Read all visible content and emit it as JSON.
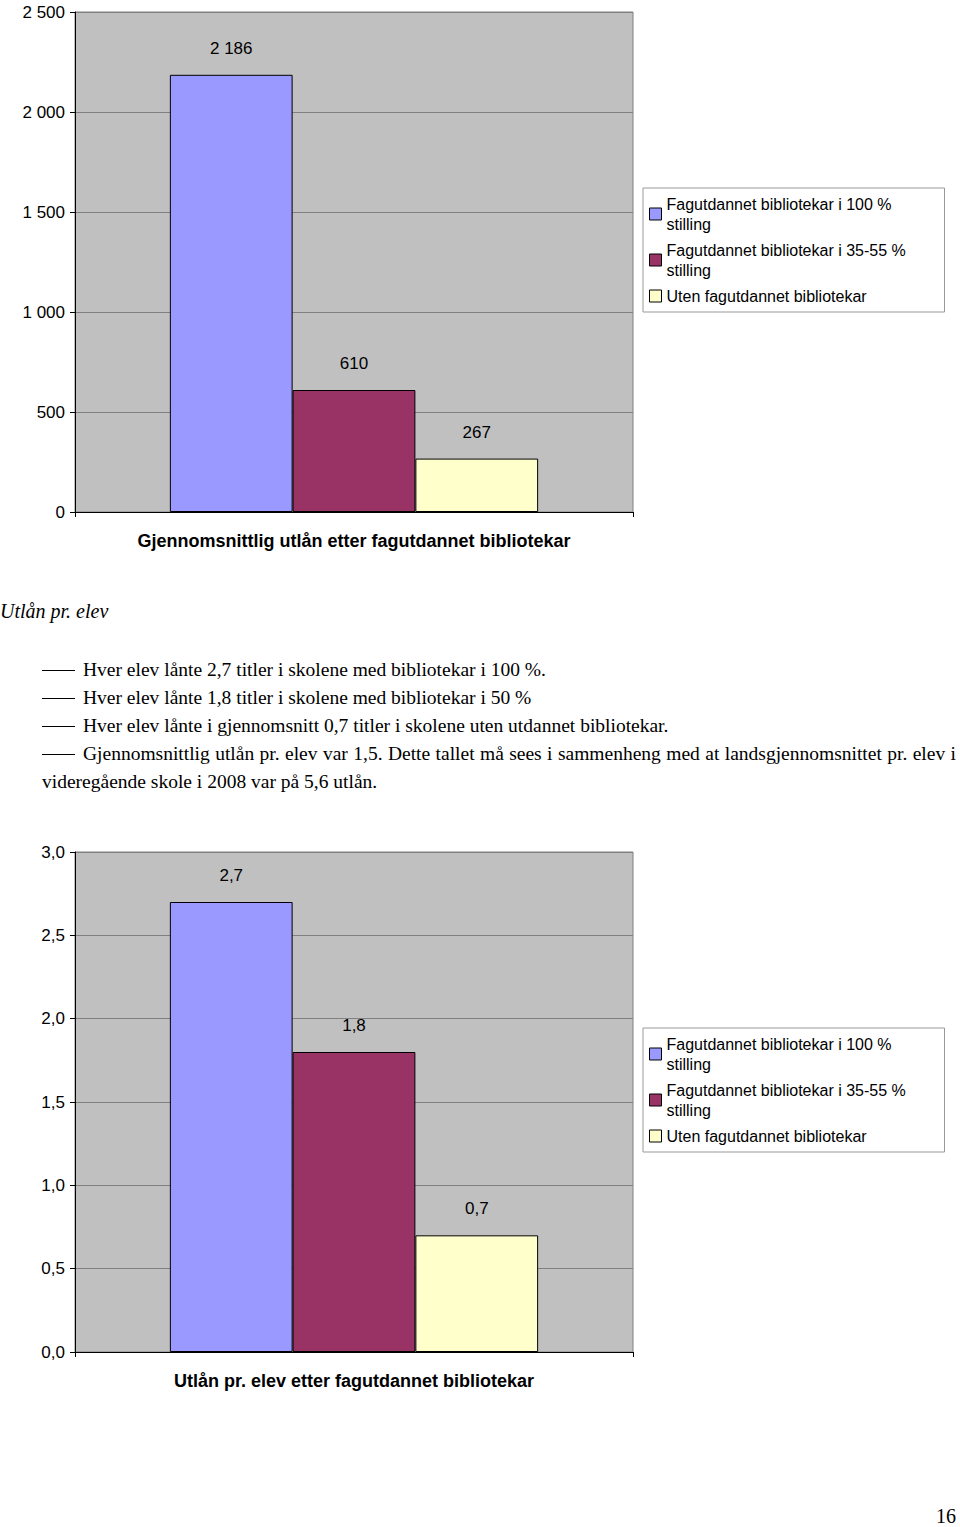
{
  "chart_data": [
    {
      "type": "bar",
      "categories": [
        "Gjennomsnittlig utlån etter fagutdannet bibliotekar"
      ],
      "series": [
        {
          "name": "Fagutdannet bibliotekar i 100 % stilling",
          "color": "#9999ff",
          "values": [
            2186
          ],
          "value_labels": [
            "2 186"
          ]
        },
        {
          "name": "Fagutdannet bibliotekar i 35-55 % stilling",
          "color": "#993366",
          "values": [
            610
          ]
        },
        {
          "name": "Uten fagutdannet bibliotekar",
          "color": "#ffffcc",
          "values": [
            267
          ]
        }
      ],
      "ylim": [
        0,
        2500
      ],
      "yticks": [
        0,
        500,
        {
          "value": 1000,
          "label": "1 000"
        },
        {
          "value": 1500,
          "label": "1 500"
        },
        {
          "value": 2000,
          "label": "2 000"
        },
        {
          "value": 2500,
          "label": "2 500"
        }
      ],
      "grid": true,
      "data_labels": true,
      "legend": "right"
    },
    {
      "type": "bar",
      "categories": [
        "Utlån pr. elev etter fagutdannet bibliotekar"
      ],
      "series": [
        {
          "name": "Fagutdannet bibliotekar i 100 % stilling",
          "color": "#9999ff",
          "values": [
            2.7
          ],
          "value_labels": [
            "2,7"
          ]
        },
        {
          "name": "Fagutdannet bibliotekar i 35-55 % stilling",
          "color": "#993366",
          "values": [
            1.8
          ],
          "value_labels": [
            "1,8"
          ]
        },
        {
          "name": "Uten fagutdannet bibliotekar",
          "color": "#ffffcc",
          "values": [
            0.7
          ],
          "value_labels": [
            "0,7"
          ]
        }
      ],
      "ylim": [
        0,
        3
      ],
      "yticks": [
        {
          "value": 0,
          "label": "0,0"
        },
        {
          "value": 0.5,
          "label": "0,5"
        },
        {
          "value": 1,
          "label": "1,0"
        },
        {
          "value": 1.5,
          "label": "1,5"
        },
        {
          "value": 2,
          "label": "2,0"
        },
        {
          "value": 2.5,
          "label": "2,5"
        },
        {
          "value": 3,
          "label": "3,0"
        }
      ],
      "grid": true,
      "data_labels": true,
      "legend": "right"
    }
  ],
  "document": {
    "heading": "Utlån pr. elev",
    "bullets": [
      "Hver elev lånte 2,7 titler i skolene med bibliotekar i 100 %.",
      "Hver elev lånte 1,8 titler i skolene med bibliotekar i 50 %",
      "Hver elev lånte i gjennomsnitt 0,7 titler i skolene uten utdannet bibliotekar.",
      "Gjennomsnittlig utlån pr. elev var 1,5. Dette tallet må sees i sammenheng med at landsgjennomsnittet pr. elev i videregående skole i 2008 var på 5,6 utlån."
    ],
    "page_number": "16"
  }
}
